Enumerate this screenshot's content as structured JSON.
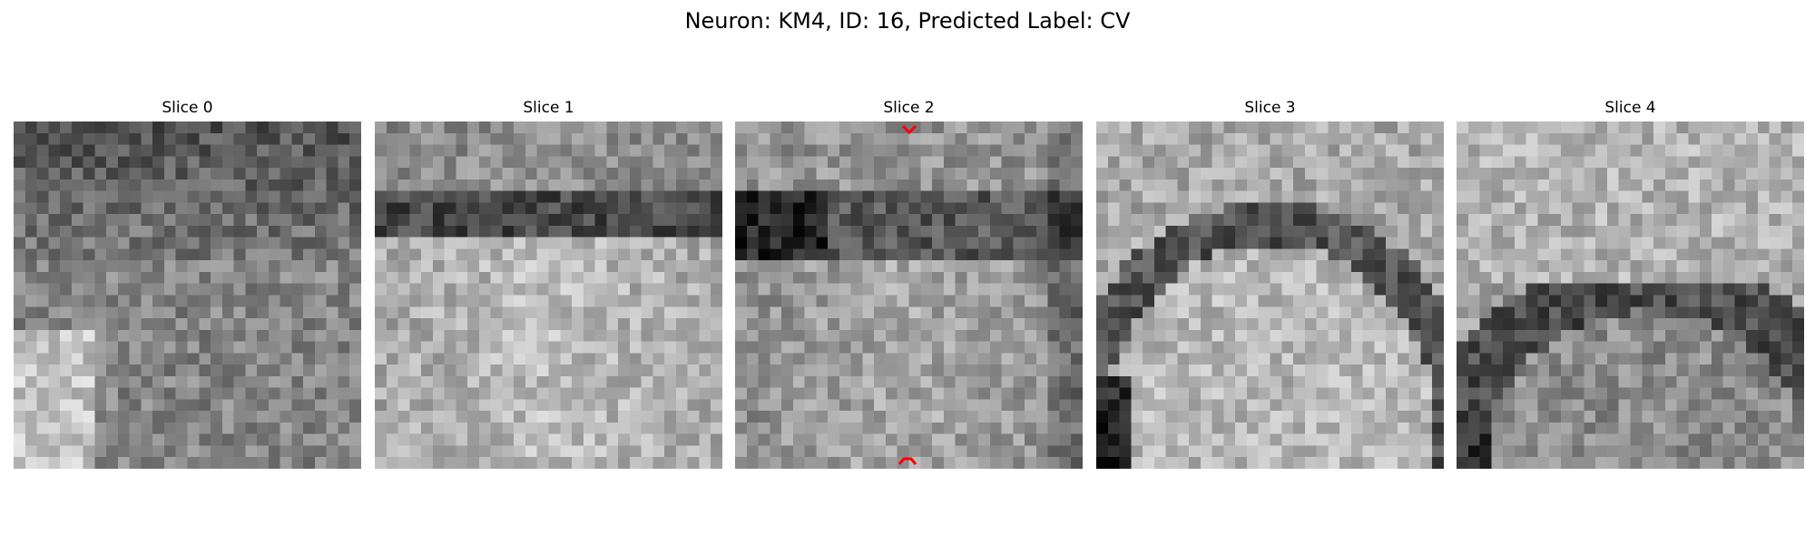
{
  "figure": {
    "title": "Neuron: KM4, ID: 16, Predicted Label: CV"
  },
  "grid": {
    "cols": 30,
    "rows": 30
  },
  "slices": [
    {
      "label": "Slice 0",
      "pattern": "top-dark-lower-mid-bright-left"
    },
    {
      "label": "Slice 1",
      "pattern": "dark-band-top-bright-dome-below"
    },
    {
      "label": "Slice 2",
      "pattern": "dark-ring-dome-with-markers"
    },
    {
      "label": "Slice 3",
      "pattern": "dark-arc-dome-bright-top"
    },
    {
      "label": "Slice 4",
      "pattern": "bright-top-dark-arc-lower"
    }
  ],
  "markers": {
    "color": "#ff0000",
    "slice_index": 2,
    "items": [
      {
        "name": "top-chevron",
        "shape": "chevron-down"
      },
      {
        "name": "bottom-chevron",
        "shape": "chevron-up"
      }
    ]
  }
}
